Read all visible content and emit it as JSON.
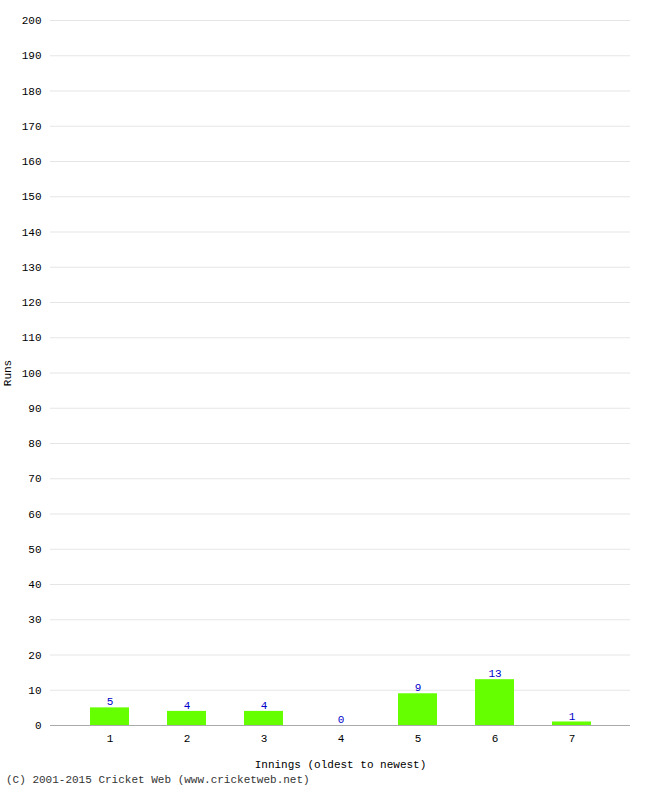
{
  "chart_data": {
    "type": "bar",
    "xlabel": "Innings (oldest to newest)",
    "ylabel": "Runs",
    "categories": [
      "1",
      "2",
      "3",
      "4",
      "5",
      "6",
      "7"
    ],
    "values": [
      5,
      4,
      4,
      0,
      9,
      13,
      1
    ],
    "color": "#66ff00",
    "ylim": [
      0,
      200
    ],
    "yticks": [
      0,
      10,
      20,
      30,
      40,
      50,
      60,
      70,
      80,
      90,
      100,
      110,
      120,
      130,
      140,
      150,
      160,
      170,
      180,
      190,
      200
    ],
    "grid": true,
    "data_labels": true,
    "footer": "(C) 2001-2015 Cricket Web (www.cricketweb.net)"
  }
}
